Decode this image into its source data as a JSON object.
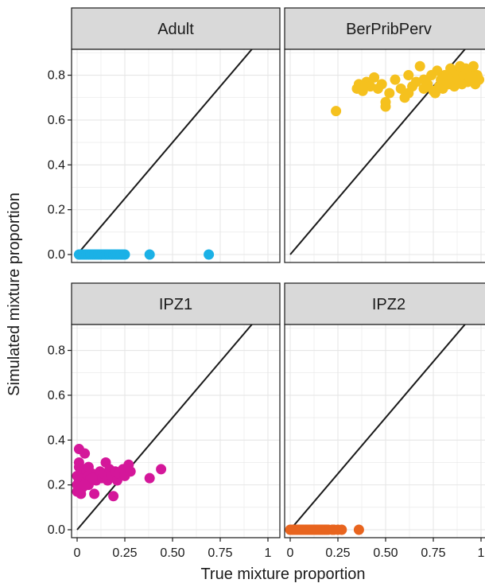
{
  "chart_data": {
    "type": "scatter",
    "xlabel": "True mixture proportion",
    "ylabel": "Simulated mixture proportion",
    "xlim": [
      0,
      1
    ],
    "ylim": [
      0,
      0.88
    ],
    "x_ticks": [
      0,
      0.25,
      0.5,
      0.75,
      1
    ],
    "x_tick_labels": [
      "0",
      "0.25",
      "0.50",
      "0.75",
      "1"
    ],
    "y_ticks": [
      0,
      0.2,
      0.4,
      0.6,
      0.8
    ],
    "y_tick_labels": [
      "0.0",
      "0.2",
      "0.4",
      "0.6",
      "0.8"
    ],
    "grid": true,
    "reference_line": "y = x",
    "panels": [
      {
        "name": "Adult",
        "color": "#1bb1e6",
        "x": [
          0.01,
          0.02,
          0.03,
          0.04,
          0.05,
          0.06,
          0.07,
          0.08,
          0.09,
          0.1,
          0.11,
          0.12,
          0.13,
          0.14,
          0.15,
          0.16,
          0.17,
          0.18,
          0.19,
          0.2,
          0.21,
          0.22,
          0.23,
          0.24,
          0.25,
          0.38,
          0.69
        ],
        "y": [
          0,
          0,
          0,
          0,
          0,
          0,
          0,
          0,
          0,
          0,
          0,
          0,
          0,
          0,
          0,
          0,
          0,
          0,
          0,
          0,
          0,
          0,
          0,
          0,
          0,
          0,
          0
        ]
      },
      {
        "name": "BerPribPerv",
        "color": "#f5c11e",
        "x": [
          0.24,
          0.35,
          0.36,
          0.38,
          0.4,
          0.42,
          0.44,
          0.46,
          0.48,
          0.5,
          0.52,
          0.55,
          0.58,
          0.6,
          0.62,
          0.64,
          0.66,
          0.68,
          0.7,
          0.72,
          0.74,
          0.75,
          0.76,
          0.77,
          0.78,
          0.79,
          0.8,
          0.81,
          0.82,
          0.83,
          0.84,
          0.85,
          0.86,
          0.87,
          0.88,
          0.89,
          0.9,
          0.91,
          0.92,
          0.93,
          0.94,
          0.95,
          0.96,
          0.97,
          0.98,
          0.99,
          0.38,
          0.5,
          0.62,
          0.7
        ],
        "y": [
          0.64,
          0.74,
          0.76,
          0.73,
          0.77,
          0.75,
          0.79,
          0.74,
          0.76,
          0.66,
          0.72,
          0.78,
          0.74,
          0.7,
          0.8,
          0.75,
          0.77,
          0.84,
          0.78,
          0.76,
          0.8,
          0.73,
          0.72,
          0.82,
          0.75,
          0.78,
          0.74,
          0.8,
          0.77,
          0.76,
          0.83,
          0.79,
          0.75,
          0.81,
          0.78,
          0.84,
          0.76,
          0.8,
          0.83,
          0.77,
          0.79,
          0.82,
          0.84,
          0.76,
          0.8,
          0.78,
          0.75,
          0.68,
          0.72,
          0.74
        ]
      },
      {
        "name": "IPZ1",
        "color": "#d4179a",
        "x": [
          0.0,
          0.0,
          0.0,
          0.01,
          0.01,
          0.01,
          0.01,
          0.02,
          0.02,
          0.02,
          0.03,
          0.03,
          0.03,
          0.04,
          0.04,
          0.05,
          0.05,
          0.06,
          0.06,
          0.07,
          0.08,
          0.09,
          0.1,
          0.11,
          0.12,
          0.13,
          0.14,
          0.15,
          0.16,
          0.17,
          0.18,
          0.19,
          0.2,
          0.21,
          0.22,
          0.24,
          0.25,
          0.27,
          0.28,
          0.38,
          0.44,
          0.01,
          0.02,
          0.04,
          0.06,
          0.08
        ],
        "y": [
          0.2,
          0.24,
          0.17,
          0.36,
          0.28,
          0.22,
          0.19,
          0.26,
          0.21,
          0.18,
          0.25,
          0.23,
          0.19,
          0.34,
          0.27,
          0.22,
          0.26,
          0.2,
          0.24,
          0.23,
          0.25,
          0.16,
          0.22,
          0.24,
          0.26,
          0.23,
          0.25,
          0.3,
          0.22,
          0.27,
          0.24,
          0.15,
          0.26,
          0.22,
          0.25,
          0.27,
          0.24,
          0.29,
          0.26,
          0.23,
          0.27,
          0.3,
          0.16,
          0.2,
          0.28,
          0.23
        ]
      },
      {
        "name": "IPZ2",
        "color": "#e8641e",
        "x": [
          0.0,
          0.01,
          0.02,
          0.03,
          0.04,
          0.05,
          0.06,
          0.07,
          0.08,
          0.09,
          0.1,
          0.11,
          0.12,
          0.13,
          0.14,
          0.15,
          0.16,
          0.17,
          0.18,
          0.19,
          0.2,
          0.22,
          0.23,
          0.25,
          0.27,
          0.36
        ],
        "y": [
          0,
          0,
          0,
          0,
          0,
          0,
          0,
          0,
          0,
          0,
          0,
          0,
          0,
          0,
          0,
          0,
          0,
          0,
          0,
          0,
          0,
          0,
          0,
          0,
          0,
          0
        ]
      }
    ]
  }
}
